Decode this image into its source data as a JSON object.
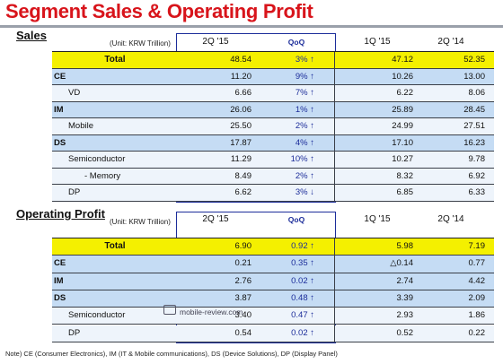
{
  "title": "Segment Sales & Operating Profit",
  "sales": {
    "heading": "Sales",
    "unit": "(Unit: KRW Trillion)",
    "columns": [
      "2Q '15",
      "QoQ",
      "1Q '15",
      "2Q '14"
    ],
    "rows": [
      {
        "seg": "",
        "label": "Total",
        "v": [
          "48.54",
          "3% ↑",
          "47.12",
          "52.35"
        ]
      },
      {
        "seg": "CE",
        "label": "",
        "v": [
          "11.20",
          "9% ↑",
          "10.26",
          "13.00"
        ]
      },
      {
        "seg": "",
        "label": "VD",
        "v": [
          "6.66",
          "7% ↑",
          "6.22",
          "8.06"
        ]
      },
      {
        "seg": "IM",
        "label": "",
        "v": [
          "26.06",
          "1% ↑",
          "25.89",
          "28.45"
        ]
      },
      {
        "seg": "",
        "label": "Mobile",
        "v": [
          "25.50",
          "2% ↑",
          "24.99",
          "27.51"
        ]
      },
      {
        "seg": "DS",
        "label": "",
        "v": [
          "17.87",
          "4% ↑",
          "17.10",
          "16.23"
        ]
      },
      {
        "seg": "",
        "label": "Semiconductor",
        "v": [
          "11.29",
          "10% ↑",
          "10.27",
          "9.78"
        ]
      },
      {
        "seg": "",
        "label": "- Memory",
        "v": [
          "8.49",
          "2% ↑",
          "8.32",
          "6.92"
        ]
      },
      {
        "seg": "",
        "label": "DP",
        "v": [
          "6.62",
          "3% ↓",
          "6.85",
          "6.33"
        ]
      }
    ]
  },
  "op": {
    "heading": "Operating Profit",
    "unit": "(Unit: KRW Trillion)",
    "columns": [
      "2Q '15",
      "QoQ",
      "1Q '15",
      "2Q '14"
    ],
    "rows": [
      {
        "seg": "",
        "label": "Total",
        "v": [
          "6.90",
          "0.92 ↑",
          "5.98",
          "7.19"
        ]
      },
      {
        "seg": "CE",
        "label": "",
        "v": [
          "0.21",
          "0.35 ↑",
          "△0.14",
          "0.77"
        ]
      },
      {
        "seg": "IM",
        "label": "",
        "v": [
          "2.76",
          "0.02 ↑",
          "2.74",
          "4.42"
        ]
      },
      {
        "seg": "DS",
        "label": "",
        "v": [
          "3.87",
          "0.48 ↑",
          "3.39",
          "2.09"
        ]
      },
      {
        "seg": "",
        "label": "Semiconductor",
        "v": [
          "3.40",
          "0.47 ↑",
          "2.93",
          "1.86"
        ]
      },
      {
        "seg": "",
        "label": "DP",
        "v": [
          "0.54",
          "0.02 ↑",
          "0.52",
          "0.22"
        ]
      }
    ]
  },
  "watermark": "mobile-review.com",
  "note": "Note) CE (Consumer Electronics), IM (IT & Mobile communications),  DS (Device Solutions), DP (Display Panel)"
}
